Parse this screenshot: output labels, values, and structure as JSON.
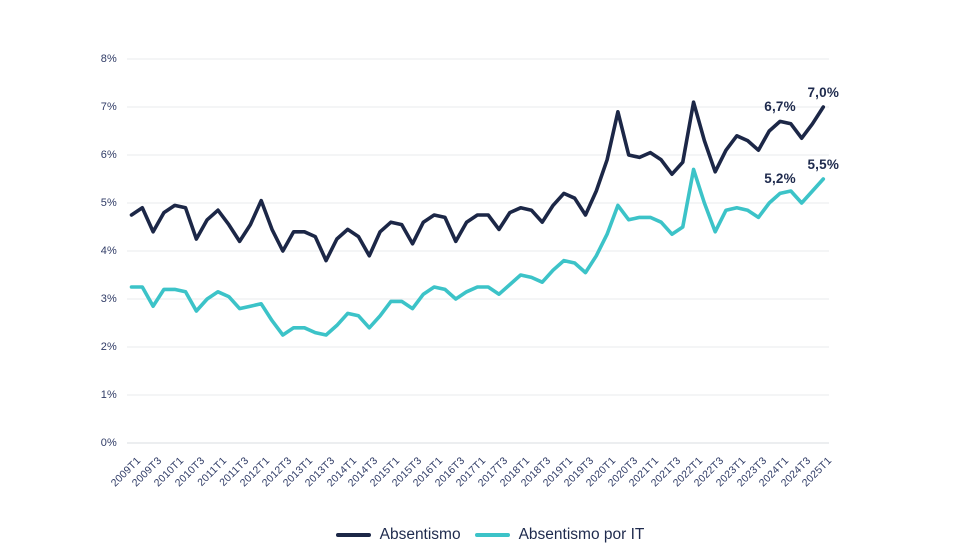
{
  "chart_data": {
    "type": "line",
    "title": "",
    "xlabel": "",
    "ylabel": "",
    "ylim": [
      0,
      8
    ],
    "grid": true,
    "legend_position": "bottom",
    "y_tick_labels": [
      "0%",
      "1%",
      "2%",
      "3%",
      "4%",
      "5%",
      "6%",
      "7%",
      "8%"
    ],
    "quarters": [
      "2009T1",
      "2009T2",
      "2009T3",
      "2009T4",
      "2010T1",
      "2010T2",
      "2010T3",
      "2010T4",
      "2011T1",
      "2011T2",
      "2011T3",
      "2011T4",
      "2012T1",
      "2012T2",
      "2012T3",
      "2012T4",
      "2013T1",
      "2013T2",
      "2013T3",
      "2013T4",
      "2014T1",
      "2014T2",
      "2014T3",
      "2014T4",
      "2015T1",
      "2015T2",
      "2015T3",
      "2015T4",
      "2016T1",
      "2016T2",
      "2016T3",
      "2016T4",
      "2017T1",
      "2017T2",
      "2017T3",
      "2017T4",
      "2018T1",
      "2018T2",
      "2018T3",
      "2018T4",
      "2019T1",
      "2019T2",
      "2019T3",
      "2019T4",
      "2020T1",
      "2020T2",
      "2020T3",
      "2020T4",
      "2021T1",
      "2021T2",
      "2021T3",
      "2021T4",
      "2022T1",
      "2022T2",
      "2022T3",
      "2022T4",
      "2023T1",
      "2023T2",
      "2023T3",
      "2023T4",
      "2024T1",
      "2024T2",
      "2024T3",
      "2024T4",
      "2025T1"
    ],
    "x_ticks_shown_every": 2,
    "series": [
      {
        "name": "Absentismo",
        "color": "#1C2747",
        "values": [
          4.75,
          4.9,
          4.4,
          4.8,
          4.95,
          4.9,
          4.25,
          4.65,
          4.85,
          4.55,
          4.2,
          4.55,
          5.05,
          4.45,
          4.0,
          4.4,
          4.4,
          4.3,
          3.8,
          4.25,
          4.45,
          4.3,
          3.9,
          4.4,
          4.6,
          4.55,
          4.15,
          4.6,
          4.75,
          4.7,
          4.2,
          4.6,
          4.75,
          4.75,
          4.45,
          4.8,
          4.9,
          4.85,
          4.6,
          4.95,
          5.2,
          5.1,
          4.75,
          5.25,
          5.9,
          6.9,
          6.0,
          5.95,
          6.05,
          5.9,
          5.6,
          5.85,
          7.1,
          6.3,
          5.65,
          6.1,
          6.4,
          6.3,
          6.1,
          6.5,
          6.7,
          6.65,
          6.35,
          6.65,
          7.0
        ]
      },
      {
        "name": "Absentismo por IT",
        "color": "#3CC3C8",
        "values": [
          3.25,
          3.25,
          2.85,
          3.2,
          3.2,
          3.15,
          2.75,
          3.0,
          3.15,
          3.05,
          2.8,
          2.85,
          2.9,
          2.55,
          2.25,
          2.4,
          2.4,
          2.3,
          2.25,
          2.45,
          2.7,
          2.65,
          2.4,
          2.65,
          2.95,
          2.95,
          2.8,
          3.1,
          3.25,
          3.2,
          3.0,
          3.15,
          3.25,
          3.25,
          3.1,
          3.3,
          3.5,
          3.45,
          3.35,
          3.6,
          3.8,
          3.75,
          3.55,
          3.9,
          4.35,
          4.95,
          4.65,
          4.7,
          4.7,
          4.6,
          4.35,
          4.5,
          5.7,
          5.0,
          4.4,
          4.85,
          4.9,
          4.85,
          4.7,
          5.0,
          5.2,
          5.25,
          5.0,
          5.25,
          5.5
        ]
      }
    ],
    "annotations": [
      {
        "series": 0,
        "quarter": "2024T1",
        "label": "6,7%"
      },
      {
        "series": 0,
        "quarter": "2025T1",
        "label": "7,0%"
      },
      {
        "series": 1,
        "quarter": "2024T1",
        "label": "5,2%"
      },
      {
        "series": 1,
        "quarter": "2025T1",
        "label": "5,5%"
      }
    ]
  }
}
